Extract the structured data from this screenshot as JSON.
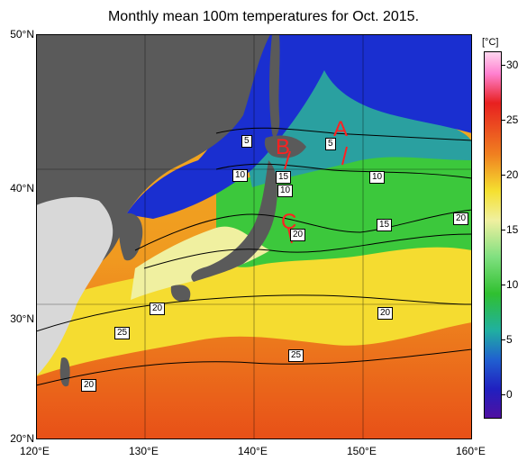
{
  "title": "Monthly mean 100m temperatures for Oct. 2015.",
  "lat_labels": [
    "50°N",
    "40°N",
    "30°N",
    "20°N"
  ],
  "lon_labels": [
    "120°E",
    "130°E",
    "140°E",
    "150°E",
    "160°E"
  ],
  "colorbar": {
    "unit": "[°C]",
    "ticks": [
      "30",
      "25",
      "20",
      "15",
      "10",
      "5",
      "0"
    ]
  },
  "contour_labels": [
    "5",
    "5",
    "10",
    "15",
    "10",
    "10",
    "15",
    "20",
    "20",
    "20",
    "20",
    "25",
    "25",
    "20"
  ],
  "region_markers": [
    "A",
    "B",
    "C"
  ],
  "colors": {
    "land": "#5a5a5a",
    "land_unobserved": "#d8d8d8",
    "cold": "#1a2fd0",
    "teal": "#2aa0a0",
    "green": "#3cc83c",
    "light": "#f0f0a0",
    "yellow": "#f5e030",
    "orange": "#f0a020",
    "red": "#e03010",
    "marker": "#ff2020"
  }
}
